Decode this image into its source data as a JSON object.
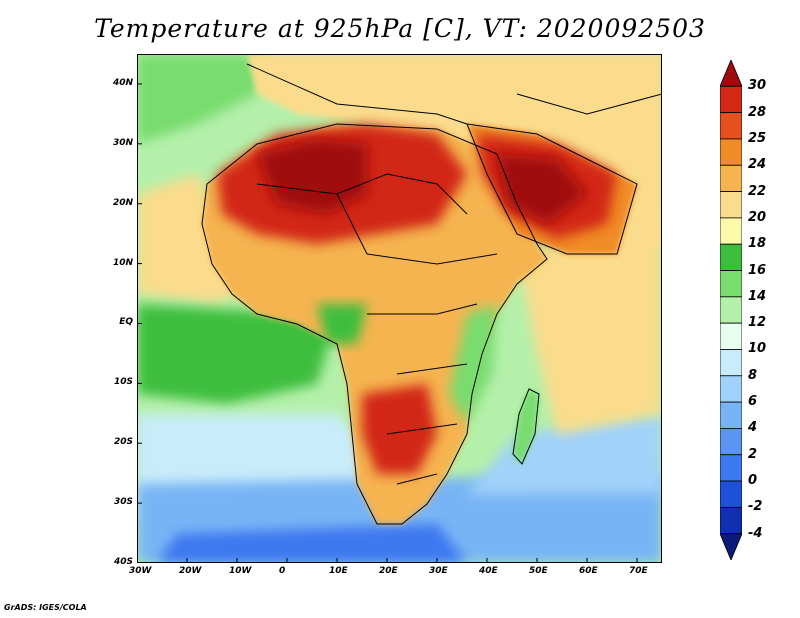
{
  "title": "Temperature at 925hPa [C], VT: 2020092503",
  "footer": "GrADS: IGES/COLA",
  "map": {
    "lon_range": [
      -30,
      75
    ],
    "lat_range": [
      -40,
      45
    ],
    "lat_ticks": [
      {
        "value": 40,
        "label": "40N"
      },
      {
        "value": 30,
        "label": "30N"
      },
      {
        "value": 20,
        "label": "20N"
      },
      {
        "value": 10,
        "label": "10N"
      },
      {
        "value": 0,
        "label": "EQ"
      },
      {
        "value": -10,
        "label": "10S"
      },
      {
        "value": -20,
        "label": "20S"
      },
      {
        "value": -30,
        "label": "30S"
      },
      {
        "value": -40,
        "label": "40S"
      }
    ],
    "lon_ticks": [
      {
        "value": -30,
        "label": "30W"
      },
      {
        "value": -20,
        "label": "20W"
      },
      {
        "value": -10,
        "label": "10W"
      },
      {
        "value": 0,
        "label": "0"
      },
      {
        "value": 10,
        "label": "10E"
      },
      {
        "value": 20,
        "label": "20E"
      },
      {
        "value": 30,
        "label": "30E"
      },
      {
        "value": 40,
        "label": "40E"
      },
      {
        "value": 50,
        "label": "50E"
      },
      {
        "value": 60,
        "label": "60E"
      },
      {
        "value": 70,
        "label": "70E"
      }
    ]
  },
  "colorbar": {
    "levels": [
      "-4",
      "-2",
      "0",
      "2",
      "4",
      "6",
      "8",
      "10",
      "12",
      "14",
      "16",
      "18",
      "20",
      "22",
      "24",
      "25",
      "28",
      "30"
    ],
    "colors": [
      "#0a1a78",
      "#1030b0",
      "#1e50d8",
      "#3c78f0",
      "#5a96f0",
      "#78b4f5",
      "#a0d2fa",
      "#c8ecfa",
      "#e6fff0",
      "#b4f0aa",
      "#78dc6e",
      "#3cbe3c",
      "#fafaaa",
      "#fadc8c",
      "#f5b450",
      "#f08c28",
      "#e6501e",
      "#d22814",
      "#a00a0a"
    ]
  }
}
